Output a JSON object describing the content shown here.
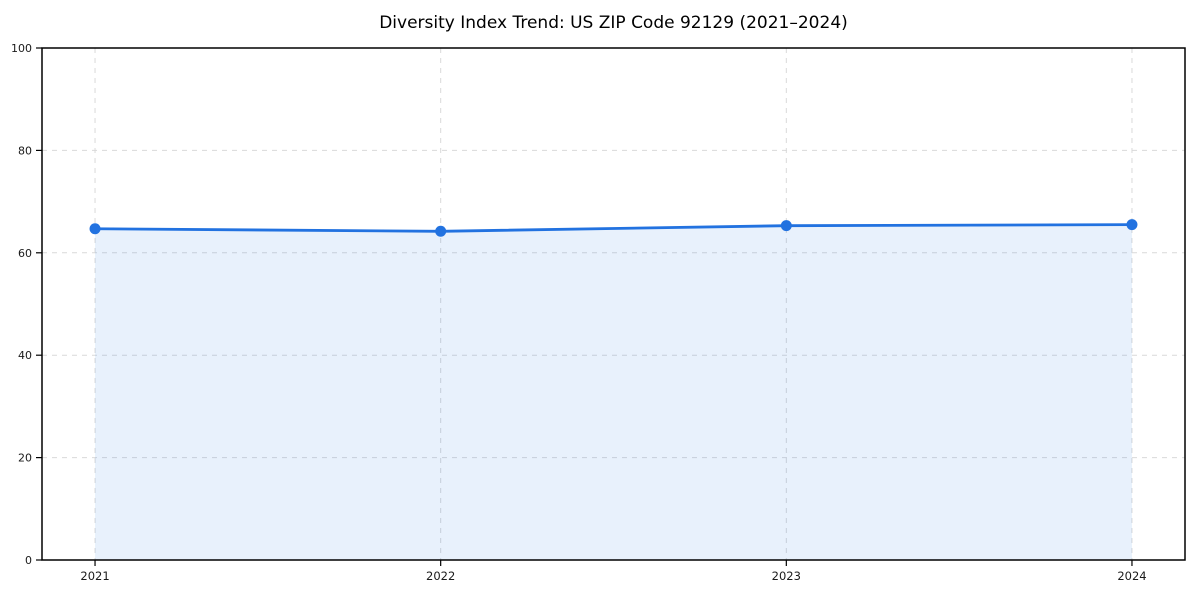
{
  "figure": {
    "title": "Diversity Index Trend: US ZIP Code 92129 (2021–2024)"
  },
  "chart_data": {
    "type": "area",
    "title": "Diversity Index Trend: US ZIP Code 92129 (2021–2024)",
    "x": [
      "2021",
      "2022",
      "2023",
      "2024"
    ],
    "series": [
      {
        "name": "Diversity Index",
        "values": [
          64.7,
          64.2,
          65.3,
          65.5
        ]
      }
    ],
    "xlabel": "",
    "ylabel": "",
    "ylim": [
      0,
      100
    ],
    "yticks": [
      0,
      20,
      40,
      60,
      80,
      100
    ],
    "grid": true,
    "grid_style": "dashed",
    "legend": "none",
    "colors": {
      "line": "#2272e0",
      "marker": "#2272e0",
      "fill": "rgba(34,114,224,0.10)",
      "grid": "#d9d9d9",
      "axis": "#000000",
      "tick_label": "#1a1a1a",
      "background": "#ffffff"
    }
  }
}
